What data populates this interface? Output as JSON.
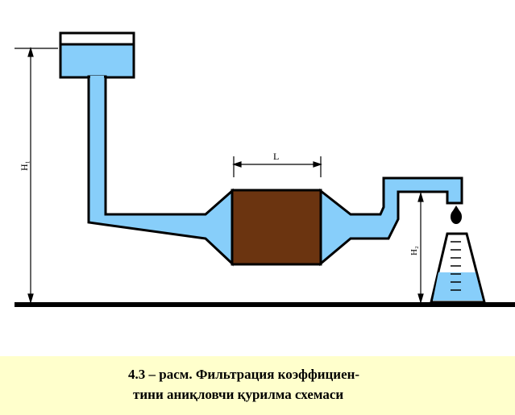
{
  "labels": {
    "height_left": "H₁",
    "height_right": "H₂",
    "length": "L"
  },
  "caption": {
    "line1": "4.3 – расм. Фильтрация коэффициен-",
    "line2": "тини аниқловчи қурилма схемаси"
  },
  "colors": {
    "water": "#87cefa",
    "sand_sample": "#6b3410",
    "outline": "#000000",
    "caption_bg": "#ffffcc"
  }
}
